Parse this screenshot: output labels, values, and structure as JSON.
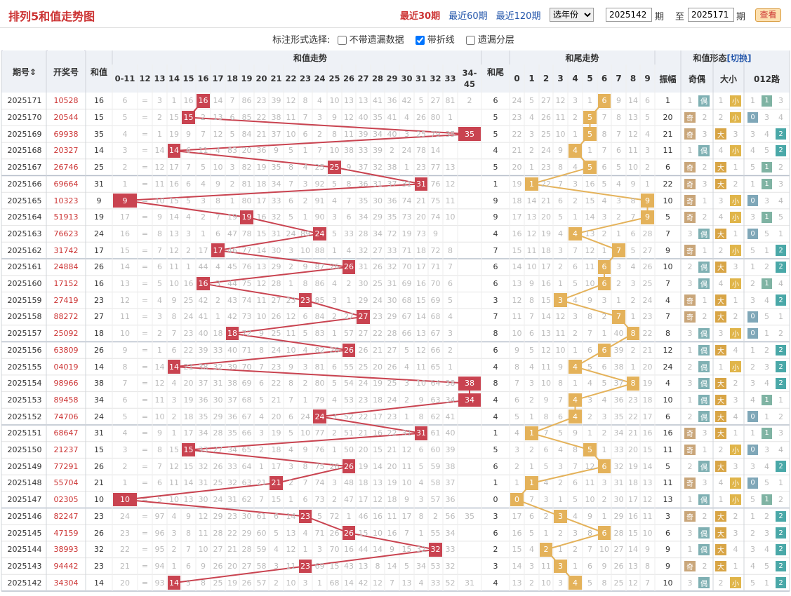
{
  "title": "排列5和值走势图",
  "nav": [
    "最近30期",
    "最近60期",
    "最近120期"
  ],
  "year_select": "选年份",
  "period_from": "2025142",
  "period_label": "期",
  "to_label": "至",
  "period_to": "2025171",
  "view_button": "查看",
  "options": {
    "label": "标注形式选择:",
    "items": [
      {
        "text": "不带遗漏数据",
        "checked": false
      },
      {
        "text": "带折线",
        "checked": true
      },
      {
        "text": "遗漏分层",
        "checked": false
      }
    ]
  },
  "headers": {
    "period": "期号",
    "draw": "开奖号",
    "sum": "和值",
    "sum_trend": "和值走势",
    "tail": "和尾",
    "tail_trend": "和尾走势",
    "form": "和值形态",
    "switch": "[切换]",
    "span": "振幅",
    "odd_even": "奇偶",
    "big_small": "大小",
    "mod": "012路",
    "sum_cols": [
      "0-11",
      "12",
      "13",
      "14",
      "15",
      "16",
      "17",
      "18",
      "19",
      "20",
      "21",
      "22",
      "23",
      "24",
      "25",
      "26",
      "27",
      "28",
      "29",
      "30",
      "31",
      "32",
      "33",
      "34-45"
    ],
    "tail_cols": [
      "0",
      "1",
      "2",
      "3",
      "4",
      "5",
      "6",
      "7",
      "8",
      "9"
    ]
  },
  "labels": {
    "odd": "奇",
    "even": "偶",
    "big": "大",
    "small": "小"
  },
  "colors": {
    "sum_mark": "#c94350",
    "tail_mark": "#e4b25a",
    "odd": "#c9a67a",
    "even": "#7fb0b3",
    "big": "#d8a546",
    "small": "#e0b54a",
    "mod0": "#7fa7b8",
    "mod1": "#7fb3a3",
    "mod2": "#4aa8a8"
  },
  "rows": [
    {
      "p": "2025171",
      "d": "10528",
      "s": 16,
      "sc": 1
    },
    {
      "p": "2025170",
      "d": "20544",
      "s": 15,
      "sc": 1
    },
    {
      "p": "2025169",
      "d": "69938",
      "s": 35,
      "sc": 1
    },
    {
      "p": "2025168",
      "d": "20327",
      "s": 14,
      "sc": 1
    },
    {
      "p": "2025167",
      "d": "26746",
      "s": 25,
      "sc": 1
    },
    {
      "p": "2025166",
      "d": "69664",
      "s": 31,
      "sc": 1
    },
    {
      "p": "2025165",
      "d": "10323",
      "s": 9,
      "sc": 1
    },
    {
      "p": "2025164",
      "d": "51913",
      "s": 19,
      "sc": 1
    },
    {
      "p": "2025163",
      "d": "76623",
      "s": 24,
      "sc": 1
    },
    {
      "p": "2025162",
      "d": "31742",
      "s": 17,
      "sc": 1
    },
    {
      "p": "2025161",
      "d": "24884",
      "s": 26,
      "sc": 1
    },
    {
      "p": "2025160",
      "d": "17152",
      "s": 16,
      "sc": 1
    },
    {
      "p": "2025159",
      "d": "27419",
      "s": 23,
      "sc": 1
    },
    {
      "p": "2025158",
      "d": "88272",
      "s": 27,
      "sc": 1
    },
    {
      "p": "2025157",
      "d": "25092",
      "s": 18,
      "sc": 1
    },
    {
      "p": "2025156",
      "d": "63809",
      "s": 26,
      "sc": 1
    },
    {
      "p": "2025155",
      "d": "04019",
      "s": 14,
      "sc": 1
    },
    {
      "p": "2025154",
      "d": "98966",
      "s": 38,
      "sc": 1
    },
    {
      "p": "2025153",
      "d": "89458",
      "s": 34,
      "sc": 1
    },
    {
      "p": "2025152",
      "d": "74706",
      "s": 24,
      "sc": 1
    },
    {
      "p": "2025151",
      "d": "68647",
      "s": 31,
      "sc": 1
    },
    {
      "p": "2025150",
      "d": "21237",
      "s": 15,
      "sc": 1
    },
    {
      "p": "2025149",
      "d": "77291",
      "s": 26,
      "sc": 1
    },
    {
      "p": "2025148",
      "d": "55704",
      "s": 21,
      "sc": 1
    },
    {
      "p": "2025147",
      "d": "02305",
      "s": 10,
      "sc": 1
    },
    {
      "p": "2025146",
      "d": "82247",
      "s": 23,
      "sc": 1
    },
    {
      "p": "2025145",
      "d": "47159",
      "s": 26,
      "sc": 1
    },
    {
      "p": "2025144",
      "d": "38993",
      "s": 32,
      "sc": 1
    },
    {
      "p": "2025143",
      "d": "94442",
      "s": 23,
      "sc": 1
    },
    {
      "p": "2025142",
      "d": "34304",
      "s": 14,
      "sc": 1
    }
  ],
  "tail": [
    6,
    5,
    5,
    4,
    5,
    1,
    9,
    9,
    4,
    7,
    6,
    6,
    3,
    7,
    8,
    6,
    4,
    8,
    4,
    4,
    1,
    5,
    6,
    1,
    0,
    3,
    6,
    2,
    3,
    4
  ],
  "span": [
    1,
    20,
    21,
    11,
    6,
    22,
    10,
    5,
    7,
    9,
    10,
    7,
    4,
    7,
    8,
    12,
    24,
    4,
    10,
    6,
    16,
    11,
    5,
    11,
    13,
    3,
    6,
    9,
    9,
    10
  ],
  "miss_sum": [
    [
      6,
      "=",
      3,
      1,
      16,
      9,
      14,
      7,
      86,
      23,
      39,
      12,
      8,
      4,
      10,
      13,
      13,
      41,
      36,
      42,
      5,
      27,
      81,
      2
    ],
    [
      5,
      "=",
      2,
      15,
      16,
      2,
      13,
      6,
      85,
      22,
      38,
      11,
      7,
      3,
      9,
      12,
      40,
      35,
      41,
      4,
      26,
      80,
      1
    ],
    [
      4,
      "=",
      1,
      19,
      9,
      7,
      12,
      5,
      84,
      21,
      37,
      10,
      6,
      2,
      8,
      11,
      39,
      34,
      40,
      3,
      25,
      79,
      35
    ],
    [
      3,
      "=",
      14,
      8,
      6,
      11,
      4,
      83,
      20,
      36,
      9,
      5,
      1,
      7,
      10,
      38,
      33,
      39,
      2,
      24,
      78,
      14
    ],
    [
      2,
      "=",
      12,
      17,
      7,
      5,
      10,
      3,
      82,
      19,
      35,
      8,
      4,
      25,
      6,
      9,
      37,
      32,
      38,
      1,
      23,
      77,
      13
    ],
    [
      1,
      "=",
      11,
      16,
      6,
      4,
      9,
      2,
      81,
      18,
      34,
      7,
      3,
      92,
      5,
      8,
      36,
      31,
      37,
      31,
      22,
      76,
      12
    ],
    [
      9,
      "=",
      10,
      15,
      5,
      3,
      8,
      1,
      80,
      17,
      33,
      6,
      2,
      91,
      4,
      7,
      35,
      30,
      36,
      74,
      21,
      75,
      11
    ],
    [
      17,
      "=",
      9,
      14,
      4,
      2,
      7,
      19,
      79,
      16,
      32,
      5,
      1,
      90,
      3,
      6,
      34,
      29,
      35,
      73,
      20,
      74,
      10
    ],
    [
      16,
      "=",
      8,
      13,
      3,
      1,
      6,
      47,
      78,
      15,
      31,
      24,
      89,
      2,
      5,
      33,
      28,
      34,
      72,
      19,
      73,
      9
    ],
    [
      15,
      "=",
      7,
      12,
      2,
      17,
      5,
      46,
      77,
      14,
      30,
      3,
      10,
      88,
      1,
      4,
      32,
      27,
      33,
      71,
      18,
      72,
      8
    ],
    [
      14,
      "=",
      6,
      11,
      1,
      44,
      4,
      45,
      76,
      13,
      29,
      2,
      9,
      87,
      26,
      3,
      31,
      26,
      32,
      70,
      17,
      71,
      7
    ],
    [
      13,
      "=",
      5,
      10,
      16,
      43,
      3,
      44,
      75,
      12,
      28,
      1,
      8,
      86,
      4,
      2,
      30,
      25,
      31,
      69,
      16,
      70,
      6
    ],
    [
      12,
      "=",
      4,
      9,
      25,
      42,
      2,
      43,
      74,
      11,
      27,
      23,
      7,
      85,
      3,
      1,
      29,
      24,
      30,
      68,
      15,
      69,
      5
    ],
    [
      11,
      "=",
      3,
      8,
      24,
      41,
      1,
      42,
      73,
      10,
      26,
      12,
      6,
      84,
      2,
      27,
      28,
      23,
      29,
      67,
      14,
      68,
      4
    ],
    [
      10,
      "=",
      2,
      7,
      23,
      40,
      18,
      41,
      72,
      9,
      25,
      11,
      5,
      83,
      1,
      57,
      27,
      22,
      28,
      66,
      13,
      67,
      3
    ],
    [
      9,
      "=",
      1,
      6,
      22,
      39,
      33,
      40,
      71,
      8,
      24,
      10,
      4,
      82,
      26,
      56,
      26,
      21,
      27,
      5,
      12,
      66,
      2
    ],
    [
      8,
      "=",
      14,
      5,
      21,
      38,
      32,
      39,
      70,
      7,
      23,
      9,
      3,
      81,
      6,
      55,
      25,
      20,
      26,
      4,
      11,
      65,
      1
    ],
    [
      7,
      "=",
      12,
      4,
      20,
      37,
      31,
      38,
      69,
      6,
      22,
      8,
      2,
      80,
      5,
      54,
      24,
      19,
      25,
      3,
      10,
      64,
      38
    ],
    [
      6,
      "=",
      11,
      3,
      19,
      36,
      30,
      37,
      68,
      5,
      21,
      7,
      1,
      79,
      4,
      53,
      23,
      18,
      24,
      2,
      9,
      63,
      34
    ],
    [
      5,
      "=",
      10,
      2,
      18,
      35,
      29,
      36,
      67,
      4,
      20,
      6,
      24,
      78,
      3,
      52,
      22,
      17,
      23,
      1,
      8,
      62,
      41
    ],
    [
      4,
      "=",
      9,
      1,
      17,
      34,
      28,
      35,
      66,
      3,
      19,
      5,
      10,
      77,
      2,
      51,
      21,
      16,
      22,
      31,
      7,
      61,
      40
    ],
    [
      3,
      "=",
      8,
      15,
      16,
      33,
      27,
      34,
      65,
      2,
      18,
      4,
      9,
      76,
      1,
      50,
      20,
      15,
      21,
      12,
      6,
      60,
      39
    ],
    [
      2,
      "=",
      7,
      12,
      15,
      32,
      26,
      33,
      64,
      1,
      17,
      3,
      8,
      75,
      26,
      49,
      19,
      14,
      20,
      11,
      5,
      59,
      38
    ],
    [
      1,
      "=",
      6,
      11,
      14,
      31,
      25,
      32,
      63,
      21,
      16,
      2,
      7,
      74,
      3,
      48,
      18,
      13,
      19,
      10,
      4,
      58,
      37
    ],
    [
      10,
      "=",
      5,
      10,
      13,
      30,
      24,
      31,
      62,
      7,
      15,
      1,
      6,
      73,
      2,
      47,
      17,
      12,
      18,
      9,
      3,
      57,
      36
    ],
    [
      24,
      "=",
      97,
      4,
      9,
      12,
      29,
      23,
      30,
      61,
      6,
      14,
      23,
      5,
      72,
      1,
      46,
      16,
      11,
      17,
      8,
      2,
      56,
      35
    ],
    [
      23,
      "=",
      96,
      3,
      8,
      11,
      28,
      22,
      29,
      60,
      5,
      13,
      4,
      71,
      26,
      45,
      15,
      10,
      16,
      7,
      1,
      55,
      34
    ],
    [
      22,
      "=",
      95,
      2,
      7,
      10,
      27,
      21,
      28,
      59,
      4,
      12,
      1,
      3,
      70,
      16,
      44,
      14,
      9,
      15,
      32,
      54,
      33
    ],
    [
      21,
      "=",
      94,
      1,
      6,
      9,
      26,
      20,
      27,
      58,
      3,
      11,
      23,
      69,
      15,
      43,
      13,
      8,
      14,
      5,
      34,
      53,
      32
    ],
    [
      20,
      "=",
      93,
      14,
      5,
      8,
      25,
      19,
      26,
      57,
      2,
      10,
      3,
      1,
      68,
      14,
      42,
      12,
      7,
      13,
      4,
      33,
      52,
      31
    ]
  ],
  "miss_tail": [
    [
      24,
      5,
      27,
      12,
      3,
      1,
      6,
      9,
      14,
      6
    ],
    [
      23,
      4,
      26,
      11,
      2,
      5,
      7,
      8,
      13,
      5
    ],
    [
      22,
      3,
      25,
      10,
      1,
      5,
      8,
      7,
      12,
      4
    ],
    [
      21,
      2,
      24,
      9,
      4,
      1,
      7,
      6,
      11,
      3
    ],
    [
      20,
      1,
      23,
      8,
      4,
      5,
      6,
      5,
      10,
      2
    ],
    [
      19,
      1,
      22,
      7,
      3,
      16,
      5,
      4,
      9,
      1
    ],
    [
      18,
      14,
      21,
      6,
      2,
      15,
      4,
      3,
      8,
      9
    ],
    [
      17,
      13,
      20,
      5,
      1,
      14,
      3,
      2,
      7,
      9
    ],
    [
      16,
      12,
      19,
      4,
      4,
      13,
      2,
      1,
      6,
      28
    ],
    [
      15,
      11,
      18,
      3,
      7,
      12,
      1,
      7,
      5,
      27
    ],
    [
      14,
      10,
      17,
      2,
      6,
      11,
      6,
      3,
      4,
      26
    ],
    [
      13,
      9,
      16,
      1,
      5,
      10,
      6,
      2,
      3,
      25
    ],
    [
      12,
      8,
      15,
      3,
      4,
      9,
      3,
      1,
      2,
      24
    ],
    [
      11,
      7,
      14,
      12,
      3,
      8,
      2,
      7,
      1,
      23
    ],
    [
      10,
      6,
      13,
      11,
      2,
      7,
      1,
      40,
      8,
      22
    ],
    [
      9,
      5,
      12,
      10,
      1,
      6,
      6,
      39,
      2,
      21
    ],
    [
      8,
      4,
      11,
      9,
      4,
      5,
      6,
      38,
      1,
      20
    ],
    [
      7,
      3,
      10,
      8,
      1,
      4,
      5,
      37,
      8,
      19
    ],
    [
      6,
      2,
      9,
      7,
      4,
      3,
      4,
      36,
      23,
      18
    ],
    [
      5,
      1,
      8,
      6,
      4,
      2,
      3,
      35,
      22,
      17
    ],
    [
      4,
      1,
      7,
      5,
      9,
      1,
      2,
      34,
      21,
      16
    ],
    [
      3,
      2,
      6,
      4,
      8,
      5,
      1,
      33,
      20,
      15
    ],
    [
      2,
      1,
      5,
      3,
      7,
      12,
      6,
      32,
      19,
      14
    ],
    [
      1,
      1,
      4,
      2,
      6,
      11,
      3,
      31,
      18,
      13
    ],
    [
      0,
      7,
      3,
      1,
      5,
      10,
      2,
      30,
      17,
      12
    ],
    [
      17,
      6,
      2,
      3,
      4,
      9,
      1,
      29,
      16,
      11
    ],
    [
      16,
      5,
      1,
      2,
      3,
      8,
      6,
      28,
      15,
      10
    ],
    [
      15,
      4,
      2,
      1,
      2,
      7,
      10,
      27,
      14,
      9
    ],
    [
      14,
      3,
      11,
      3,
      1,
      6,
      9,
      26,
      13,
      8
    ],
    [
      13,
      2,
      10,
      3,
      4,
      5,
      8,
      25,
      12,
      7
    ]
  ]
}
